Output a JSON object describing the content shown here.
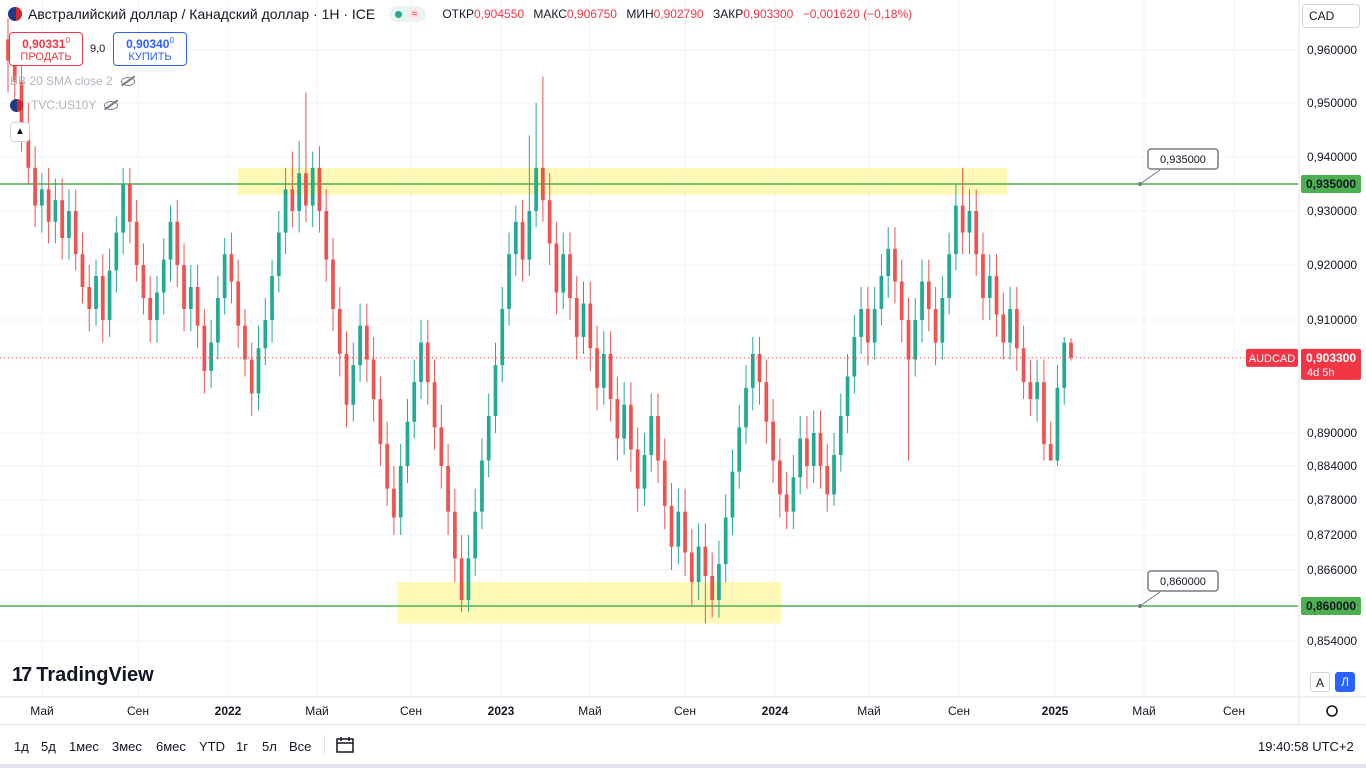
{
  "header": {
    "title": "Австралийский доллар / Канадский доллар · 1H · ICE",
    "ohlc": [
      {
        "label": "ОТКР",
        "value": "0,904550"
      },
      {
        "label": "МАКС",
        "value": "0,906750"
      },
      {
        "label": "МИН",
        "value": "0,902790"
      },
      {
        "label": "ЗАКР",
        "value": "0,903300"
      }
    ],
    "change": "−0,001620 (−0,18%)",
    "wave_symbol": "≈"
  },
  "trade": {
    "sell_price": "0,90331",
    "sell_price_sup": "0",
    "sell_label": "ПРОДАТЬ",
    "spread": "9,0",
    "buy_price": "0,90340",
    "buy_price_sup": "0",
    "buy_label": "КУПИТЬ"
  },
  "indicators": [
    {
      "label": "BB 20 SMA close 2"
    },
    {
      "label": "TVC:US10Y"
    }
  ],
  "currency_button": "CAD",
  "price_tag": {
    "symbol": "AUDCAD",
    "price": "0,903300",
    "countdown": "4d 5h"
  },
  "bottom_bar": {
    "periods": [
      "1д",
      "5д",
      "1мес",
      "3мес",
      "6мес",
      "YTD",
      "1г",
      "5л",
      "Все"
    ],
    "clock": "19:40:58 UTC+2"
  },
  "branding": {
    "logo_text": "TradingView"
  },
  "scale_buttons": {
    "auto": "A",
    "log": "Л"
  },
  "colors": {
    "up": "#22ab94",
    "down": "#ef5350",
    "level_line": "#4caf50",
    "zone": "#fff59d",
    "price_tag": "#f23645"
  },
  "icons": [
    "flag-icon",
    "eye-slash-icon",
    "chevron-up-icon",
    "calendar-range-icon",
    "settings-icon",
    "tradingview-logo-icon"
  ],
  "chart_data": {
    "type": "candlestick",
    "y_ticks": [
      "0,960000",
      "0,950000",
      "0,940000",
      "0,930000",
      "0,920000",
      "0,910000",
      "0,890000",
      "0,884000",
      "0,878000",
      "0,872000",
      "0,866000",
      "0,860000",
      "0,854000"
    ],
    "y_tick_values": [
      0.96,
      0.95,
      0.94,
      0.93,
      0.92,
      0.91,
      0.89,
      0.884,
      0.878,
      0.872,
      0.866,
      0.86,
      0.854
    ],
    "x_ticks": [
      "Май",
      "Сен",
      "2022",
      "Май",
      "Сен",
      "2023",
      "Май",
      "Сен",
      "2024",
      "Май",
      "Сен",
      "2025",
      "Май",
      "Сен"
    ],
    "levels": [
      {
        "value": 0.935,
        "label": "0,935000"
      },
      {
        "value": 0.86,
        "label": "0,860000"
      }
    ],
    "current_price": 0.9033,
    "zones": [
      {
        "from_date": "2021-12",
        "to_date": "2024-10",
        "low": 0.933,
        "high": 0.938
      },
      {
        "from_date": "2022-08",
        "to_date": "2024-01",
        "low": 0.857,
        "high": 0.864
      }
    ],
    "candles": [
      [
        0.962,
        0.958,
        0.966,
        0.952
      ],
      [
        0.958,
        0.954,
        0.962,
        0.949
      ],
      [
        0.954,
        0.945,
        0.958,
        0.941
      ],
      [
        0.945,
        0.938,
        0.95,
        0.935
      ],
      [
        0.938,
        0.931,
        0.942,
        0.927
      ],
      [
        0.931,
        0.934,
        0.937,
        0.926
      ],
      [
        0.934,
        0.928,
        0.938,
        0.924
      ],
      [
        0.928,
        0.932,
        0.936,
        0.924
      ],
      [
        0.932,
        0.925,
        0.936,
        0.921
      ],
      [
        0.925,
        0.93,
        0.934,
        0.921
      ],
      [
        0.93,
        0.922,
        0.934,
        0.919
      ],
      [
        0.922,
        0.916,
        0.926,
        0.913
      ],
      [
        0.916,
        0.912,
        0.92,
        0.908
      ],
      [
        0.912,
        0.918,
        0.921,
        0.909
      ],
      [
        0.918,
        0.91,
        0.922,
        0.906
      ],
      [
        0.91,
        0.919,
        0.923,
        0.907
      ],
      [
        0.919,
        0.926,
        0.929,
        0.915
      ],
      [
        0.926,
        0.935,
        0.938,
        0.922
      ],
      [
        0.935,
        0.928,
        0.938,
        0.924
      ],
      [
        0.928,
        0.92,
        0.932,
        0.917
      ],
      [
        0.92,
        0.914,
        0.924,
        0.911
      ],
      [
        0.914,
        0.91,
        0.918,
        0.906
      ],
      [
        0.91,
        0.915,
        0.918,
        0.906
      ],
      [
        0.915,
        0.921,
        0.925,
        0.911
      ],
      [
        0.921,
        0.928,
        0.931,
        0.917
      ],
      [
        0.928,
        0.92,
        0.932,
        0.916
      ],
      [
        0.92,
        0.912,
        0.924,
        0.908
      ],
      [
        0.912,
        0.916,
        0.92,
        0.908
      ],
      [
        0.916,
        0.909,
        0.92,
        0.905
      ],
      [
        0.909,
        0.901,
        0.912,
        0.897
      ],
      [
        0.901,
        0.906,
        0.91,
        0.898
      ],
      [
        0.906,
        0.914,
        0.918,
        0.903
      ],
      [
        0.914,
        0.922,
        0.925,
        0.911
      ],
      [
        0.922,
        0.917,
        0.926,
        0.913
      ],
      [
        0.917,
        0.909,
        0.921,
        0.905
      ],
      [
        0.909,
        0.903,
        0.912,
        0.9
      ],
      [
        0.903,
        0.897,
        0.906,
        0.893
      ],
      [
        0.897,
        0.905,
        0.909,
        0.894
      ],
      [
        0.905,
        0.91,
        0.914,
        0.902
      ],
      [
        0.91,
        0.918,
        0.921,
        0.906
      ],
      [
        0.918,
        0.926,
        0.93,
        0.915
      ],
      [
        0.926,
        0.934,
        0.938,
        0.922
      ],
      [
        0.934,
        0.93,
        0.941,
        0.927
      ],
      [
        0.93,
        0.937,
        0.943,
        0.926
      ],
      [
        0.937,
        0.931,
        0.952,
        0.928
      ],
      [
        0.931,
        0.938,
        0.941,
        0.927
      ],
      [
        0.938,
        0.93,
        0.942,
        0.926
      ],
      [
        0.93,
        0.921,
        0.934,
        0.917
      ],
      [
        0.921,
        0.912,
        0.925,
        0.908
      ],
      [
        0.912,
        0.904,
        0.916,
        0.9
      ],
      [
        0.904,
        0.895,
        0.908,
        0.891
      ],
      [
        0.895,
        0.902,
        0.906,
        0.892
      ],
      [
        0.902,
        0.909,
        0.913,
        0.899
      ],
      [
        0.909,
        0.903,
        0.913,
        0.899
      ],
      [
        0.903,
        0.896,
        0.907,
        0.892
      ],
      [
        0.896,
        0.888,
        0.9,
        0.884
      ],
      [
        0.888,
        0.88,
        0.892,
        0.877
      ],
      [
        0.88,
        0.875,
        0.884,
        0.872
      ],
      [
        0.875,
        0.884,
        0.888,
        0.872
      ],
      [
        0.884,
        0.892,
        0.896,
        0.881
      ],
      [
        0.892,
        0.899,
        0.903,
        0.889
      ],
      [
        0.899,
        0.906,
        0.91,
        0.896
      ],
      [
        0.906,
        0.899,
        0.91,
        0.895
      ],
      [
        0.899,
        0.891,
        0.903,
        0.887
      ],
      [
        0.891,
        0.884,
        0.895,
        0.88
      ],
      [
        0.884,
        0.876,
        0.888,
        0.872
      ],
      [
        0.876,
        0.868,
        0.88,
        0.864
      ],
      [
        0.868,
        0.861,
        0.872,
        0.859
      ],
      [
        0.861,
        0.868,
        0.872,
        0.859
      ],
      [
        0.868,
        0.876,
        0.88,
        0.865
      ],
      [
        0.876,
        0.885,
        0.889,
        0.873
      ],
      [
        0.885,
        0.893,
        0.897,
        0.882
      ],
      [
        0.893,
        0.902,
        0.906,
        0.89
      ],
      [
        0.902,
        0.912,
        0.916,
        0.899
      ],
      [
        0.912,
        0.922,
        0.926,
        0.909
      ],
      [
        0.922,
        0.928,
        0.931,
        0.918
      ],
      [
        0.928,
        0.921,
        0.932,
        0.917
      ],
      [
        0.921,
        0.93,
        0.944,
        0.918
      ],
      [
        0.93,
        0.938,
        0.95,
        0.927
      ],
      [
        0.938,
        0.932,
        0.955,
        0.928
      ],
      [
        0.932,
        0.924,
        0.937,
        0.92
      ],
      [
        0.924,
        0.915,
        0.928,
        0.911
      ],
      [
        0.915,
        0.922,
        0.926,
        0.912
      ],
      [
        0.922,
        0.914,
        0.926,
        0.91
      ],
      [
        0.914,
        0.907,
        0.918,
        0.903
      ],
      [
        0.907,
        0.913,
        0.917,
        0.904
      ],
      [
        0.913,
        0.905,
        0.917,
        0.901
      ],
      [
        0.905,
        0.898,
        0.909,
        0.894
      ],
      [
        0.898,
        0.904,
        0.908,
        0.895
      ],
      [
        0.904,
        0.896,
        0.908,
        0.892
      ],
      [
        0.896,
        0.889,
        0.9,
        0.885
      ],
      [
        0.889,
        0.895,
        0.899,
        0.886
      ],
      [
        0.895,
        0.887,
        0.899,
        0.883
      ],
      [
        0.887,
        0.88,
        0.891,
        0.876
      ],
      [
        0.88,
        0.886,
        0.89,
        0.877
      ],
      [
        0.886,
        0.893,
        0.897,
        0.883
      ],
      [
        0.893,
        0.885,
        0.897,
        0.881
      ],
      [
        0.885,
        0.877,
        0.889,
        0.873
      ],
      [
        0.877,
        0.87,
        0.881,
        0.866
      ],
      [
        0.87,
        0.876,
        0.88,
        0.867
      ],
      [
        0.876,
        0.869,
        0.88,
        0.865
      ],
      [
        0.869,
        0.864,
        0.873,
        0.86
      ],
      [
        0.864,
        0.87,
        0.874,
        0.861
      ],
      [
        0.87,
        0.865,
        0.874,
        0.857
      ],
      [
        0.865,
        0.861,
        0.869,
        0.858
      ],
      [
        0.861,
        0.867,
        0.871,
        0.858
      ],
      [
        0.867,
        0.875,
        0.879,
        0.864
      ],
      [
        0.875,
        0.883,
        0.887,
        0.872
      ],
      [
        0.883,
        0.891,
        0.895,
        0.88
      ],
      [
        0.891,
        0.898,
        0.902,
        0.888
      ],
      [
        0.898,
        0.904,
        0.907,
        0.894
      ],
      [
        0.904,
        0.899,
        0.907,
        0.895
      ],
      [
        0.899,
        0.892,
        0.903,
        0.888
      ],
      [
        0.892,
        0.885,
        0.896,
        0.881
      ],
      [
        0.885,
        0.879,
        0.889,
        0.875
      ],
      [
        0.879,
        0.876,
        0.883,
        0.873
      ],
      [
        0.876,
        0.882,
        0.886,
        0.873
      ],
      [
        0.882,
        0.889,
        0.893,
        0.879
      ],
      [
        0.889,
        0.884,
        0.893,
        0.88
      ],
      [
        0.884,
        0.89,
        0.894,
        0.881
      ],
      [
        0.89,
        0.884,
        0.894,
        0.88
      ],
      [
        0.884,
        0.879,
        0.888,
        0.876
      ],
      [
        0.879,
        0.886,
        0.89,
        0.877
      ],
      [
        0.886,
        0.893,
        0.897,
        0.883
      ],
      [
        0.893,
        0.9,
        0.904,
        0.89
      ],
      [
        0.9,
        0.907,
        0.911,
        0.897
      ],
      [
        0.907,
        0.912,
        0.916,
        0.904
      ],
      [
        0.912,
        0.906,
        0.916,
        0.902
      ],
      [
        0.906,
        0.912,
        0.916,
        0.903
      ],
      [
        0.912,
        0.918,
        0.922,
        0.909
      ],
      [
        0.918,
        0.923,
        0.927,
        0.914
      ],
      [
        0.923,
        0.917,
        0.927,
        0.913
      ],
      [
        0.917,
        0.91,
        0.921,
        0.906
      ],
      [
        0.91,
        0.903,
        0.914,
        0.885
      ],
      [
        0.903,
        0.91,
        0.914,
        0.9
      ],
      [
        0.91,
        0.917,
        0.921,
        0.906
      ],
      [
        0.917,
        0.912,
        0.921,
        0.908
      ],
      [
        0.912,
        0.906,
        0.916,
        0.902
      ],
      [
        0.906,
        0.914,
        0.918,
        0.903
      ],
      [
        0.914,
        0.922,
        0.926,
        0.911
      ],
      [
        0.922,
        0.931,
        0.935,
        0.919
      ],
      [
        0.931,
        0.926,
        0.938,
        0.922
      ],
      [
        0.926,
        0.93,
        0.934,
        0.922
      ],
      [
        0.93,
        0.922,
        0.934,
        0.918
      ],
      [
        0.922,
        0.914,
        0.926,
        0.91
      ],
      [
        0.914,
        0.918,
        0.922,
        0.91
      ],
      [
        0.918,
        0.911,
        0.922,
        0.907
      ],
      [
        0.911,
        0.906,
        0.915,
        0.903
      ],
      [
        0.906,
        0.912,
        0.916,
        0.903
      ],
      [
        0.912,
        0.905,
        0.916,
        0.901
      ],
      [
        0.905,
        0.899,
        0.909,
        0.896
      ],
      [
        0.899,
        0.896,
        0.903,
        0.893
      ],
      [
        0.896,
        0.899,
        0.903,
        0.892
      ],
      [
        0.899,
        0.888,
        0.903,
        0.885
      ],
      [
        0.888,
        0.885,
        0.892,
        0.885
      ],
      [
        0.885,
        0.898,
        0.902,
        0.884
      ],
      [
        0.898,
        0.906,
        0.907,
        0.895
      ],
      [
        0.906,
        0.9033,
        0.9068,
        0.9028
      ]
    ]
  }
}
